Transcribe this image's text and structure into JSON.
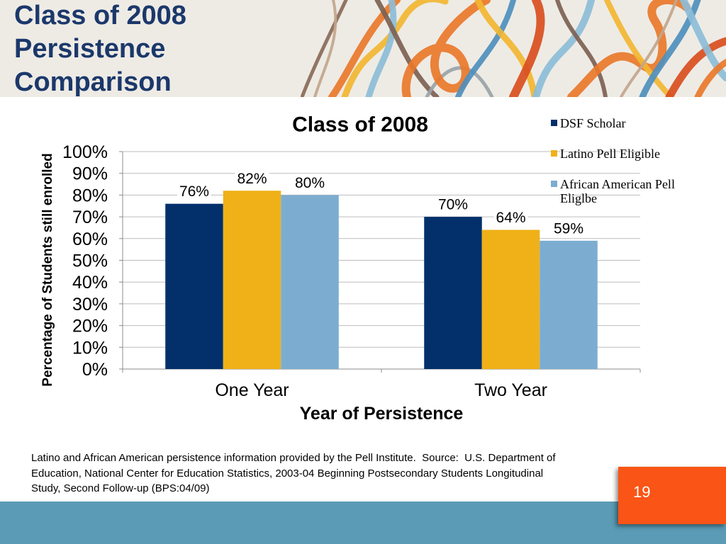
{
  "slide": {
    "title_lines": [
      "Class of 2008",
      "Persistence",
      "Comparison"
    ],
    "footnote_lines": [
      "Latino and African American persistence information provided by the Pell Institute.  Source:  U.S. Department of",
      "Education, National Center for Education Statistics, 2003-04 Beginning Postsecondary Students Longitudinal",
      "Study, Second Follow-up (BPS:04/09)"
    ],
    "page_number": "19"
  },
  "colors": {
    "title": "#1b386b",
    "banner_background": "#eeebe5",
    "footer_band": "#5b9bb5",
    "page_number_box": "#fa5416",
    "page_number_text": "#ffffff"
  },
  "chart_data": {
    "type": "bar",
    "title": "Class of 2008",
    "categories": [
      "One Year",
      "Two Year"
    ],
    "series": [
      {
        "name": "DSF Scholar",
        "values": [
          76,
          70
        ],
        "data_labels": [
          "76%",
          "70%"
        ],
        "color": "#03306b"
      },
      {
        "name": "Latino Pell Eligible",
        "values": [
          82,
          64
        ],
        "data_labels": [
          "82%",
          "64%"
        ],
        "color": "#efb117"
      },
      {
        "name": "African American Pell Eliglbe",
        "values": [
          80,
          59
        ],
        "data_labels": [
          "80%",
          "59%"
        ],
        "color": "#7cadd0"
      }
    ],
    "xlabel": "Year of Persistence",
    "ylabel": "Percentage of Students still enrolled",
    "ylim": [
      0,
      100
    ],
    "yticks": [
      0,
      10,
      20,
      30,
      40,
      50,
      60,
      70,
      80,
      90,
      100
    ],
    "ytick_labels": [
      "0%",
      "10%",
      "20%",
      "30%",
      "40%",
      "50%",
      "60%",
      "70%",
      "80%",
      "90%",
      "100%"
    ],
    "grid": true,
    "legend_position": "right"
  }
}
